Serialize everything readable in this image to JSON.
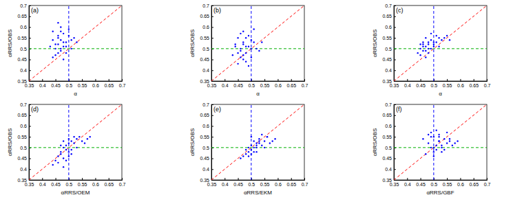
{
  "chart_data": [
    {
      "type": "scatter",
      "title": "(a)",
      "x_label": "α",
      "y_label": "αRRS/OBS",
      "xlim": [
        0.35,
        0.7
      ],
      "ylim": [
        0.35,
        0.7
      ],
      "xticks": [
        0.35,
        0.4,
        0.45,
        0.5,
        0.55,
        0.6,
        0.65,
        0.7
      ],
      "yticks": [
        0.35,
        0.4,
        0.45,
        0.5,
        0.55,
        0.6,
        0.65,
        0.7
      ],
      "series": [
        {
          "color": "#0000ff",
          "marker": "dot",
          "x": [
            0.45,
            0.46,
            0.47,
            0.48,
            0.44,
            0.49,
            0.5,
            0.46,
            0.47,
            0.45,
            0.48,
            0.51,
            0.43,
            0.46,
            0.47,
            0.49,
            0.52,
            0.44,
            0.48,
            0.46,
            0.5,
            0.47,
            0.45,
            0.53,
            0.48,
            0.46,
            0.49,
            0.47,
            0.51,
            0.44
          ],
          "values": [
            0.52,
            0.55,
            0.5,
            0.53,
            0.58,
            0.51,
            0.56,
            0.48,
            0.6,
            0.47,
            0.57,
            0.54,
            0.51,
            0.62,
            0.49,
            0.53,
            0.55,
            0.46,
            0.45,
            0.52,
            0.59,
            0.54,
            0.5,
            0.53,
            0.51,
            0.56,
            0.48,
            0.58,
            0.5,
            0.54
          ]
        }
      ],
      "lines": [
        {
          "x": [
            0.35,
            0.7
          ],
          "y": [
            0.35,
            0.7
          ],
          "color": "#ff0000",
          "line_style": "dashed"
        },
        {
          "x": [
            0.5,
            0.5
          ],
          "y": [
            0.35,
            0.7
          ],
          "color": "#0000ff",
          "line_style": "dashed"
        },
        {
          "x": [
            0.35,
            0.7
          ],
          "y": [
            0.5,
            0.5
          ],
          "color": "#00b000",
          "line_style": "dashed"
        }
      ]
    },
    {
      "type": "scatter",
      "title": "(b)",
      "x_label": "α",
      "y_label": "αRRS/OBS",
      "xlim": [
        0.35,
        0.7
      ],
      "ylim": [
        0.35,
        0.7
      ],
      "xticks": [
        0.35,
        0.4,
        0.45,
        0.5,
        0.55,
        0.6,
        0.65,
        0.7
      ],
      "yticks": [
        0.35,
        0.4,
        0.45,
        0.5,
        0.55,
        0.6,
        0.65,
        0.7
      ],
      "series": [
        {
          "color": "#0000ff",
          "marker": "dot",
          "x": [
            0.46,
            0.47,
            0.48,
            0.45,
            0.49,
            0.5,
            0.44,
            0.47,
            0.48,
            0.46,
            0.51,
            0.52,
            0.43,
            0.47,
            0.49,
            0.45,
            0.5,
            0.48,
            0.46,
            0.53,
            0.47,
            0.49,
            0.44,
            0.51,
            0.48,
            0.46,
            0.5,
            0.47,
            0.45,
            0.54
          ],
          "values": [
            0.5,
            0.53,
            0.48,
            0.55,
            0.51,
            0.46,
            0.52,
            0.58,
            0.44,
            0.49,
            0.53,
            0.5,
            0.47,
            0.45,
            0.56,
            0.43,
            0.54,
            0.51,
            0.57,
            0.49,
            0.47,
            0.42,
            0.51,
            0.59,
            0.55,
            0.46,
            0.5,
            0.52,
            0.48,
            0.53
          ]
        }
      ],
      "lines": [
        {
          "x": [
            0.35,
            0.7
          ],
          "y": [
            0.35,
            0.7
          ],
          "color": "#ff0000",
          "line_style": "dashed"
        },
        {
          "x": [
            0.5,
            0.5
          ],
          "y": [
            0.35,
            0.7
          ],
          "color": "#0000ff",
          "line_style": "dashed"
        },
        {
          "x": [
            0.35,
            0.7
          ],
          "y": [
            0.5,
            0.5
          ],
          "color": "#00b000",
          "line_style": "dashed"
        }
      ]
    },
    {
      "type": "scatter",
      "title": "(c)",
      "x_label": "α",
      "y_label": "αRRS/OBS",
      "xlim": [
        0.35,
        0.7
      ],
      "ylim": [
        0.35,
        0.7
      ],
      "xticks": [
        0.35,
        0.4,
        0.45,
        0.5,
        0.55,
        0.6,
        0.65,
        0.7
      ],
      "yticks": [
        0.35,
        0.4,
        0.45,
        0.5,
        0.55,
        0.6,
        0.65,
        0.7
      ],
      "series": [
        {
          "color": "#0000ff",
          "marker": "dot",
          "x": [
            0.45,
            0.46,
            0.47,
            0.48,
            0.46,
            0.49,
            0.5,
            0.47,
            0.48,
            0.45,
            0.51,
            0.52,
            0.44,
            0.47,
            0.49,
            0.53,
            0.55,
            0.46,
            0.48,
            0.5,
            0.47,
            0.54,
            0.49,
            0.46,
            0.51,
            0.48,
            0.56,
            0.45,
            0.5,
            0.52
          ],
          "values": [
            0.5,
            0.52,
            0.51,
            0.53,
            0.49,
            0.54,
            0.52,
            0.55,
            0.5,
            0.47,
            0.53,
            0.55,
            0.48,
            0.49,
            0.57,
            0.54,
            0.56,
            0.53,
            0.52,
            0.51,
            0.46,
            0.55,
            0.5,
            0.51,
            0.56,
            0.48,
            0.54,
            0.52,
            0.53,
            0.51
          ]
        }
      ],
      "lines": [
        {
          "x": [
            0.35,
            0.7
          ],
          "y": [
            0.35,
            0.7
          ],
          "color": "#ff0000",
          "line_style": "dashed"
        },
        {
          "x": [
            0.5,
            0.5
          ],
          "y": [
            0.35,
            0.7
          ],
          "color": "#0000ff",
          "line_style": "dashed"
        },
        {
          "x": [
            0.35,
            0.7
          ],
          "y": [
            0.5,
            0.5
          ],
          "color": "#00b000",
          "line_style": "dashed"
        }
      ]
    },
    {
      "type": "scatter",
      "title": "(d)",
      "x_label": "αRRS/OEM",
      "y_label": "αRRS/OBS",
      "xlim": [
        0.35,
        0.7
      ],
      "ylim": [
        0.35,
        0.7
      ],
      "xticks": [
        0.35,
        0.4,
        0.45,
        0.5,
        0.55,
        0.6,
        0.65,
        0.7
      ],
      "yticks": [
        0.35,
        0.4,
        0.45,
        0.5,
        0.55,
        0.6,
        0.65,
        0.7
      ],
      "series": [
        {
          "color": "#0000ff",
          "marker": "dot",
          "x": [
            0.47,
            0.48,
            0.49,
            0.5,
            0.46,
            0.51,
            0.52,
            0.48,
            0.5,
            0.45,
            0.53,
            0.55,
            0.47,
            0.49,
            0.51,
            0.44,
            0.54,
            0.5,
            0.48,
            0.57,
            0.52,
            0.46,
            0.5,
            0.49,
            0.53,
            0.58,
            0.47,
            0.51,
            0.56,
            0.48
          ],
          "values": [
            0.47,
            0.45,
            0.49,
            0.52,
            0.43,
            0.53,
            0.55,
            0.5,
            0.46,
            0.44,
            0.54,
            0.53,
            0.48,
            0.51,
            0.49,
            0.42,
            0.55,
            0.54,
            0.41,
            0.54,
            0.52,
            0.46,
            0.48,
            0.44,
            0.5,
            0.55,
            0.51,
            0.47,
            0.52,
            0.53
          ]
        }
      ],
      "lines": [
        {
          "x": [
            0.35,
            0.7
          ],
          "y": [
            0.35,
            0.7
          ],
          "color": "#ff0000",
          "line_style": "dashed"
        },
        {
          "x": [
            0.5,
            0.5
          ],
          "y": [
            0.35,
            0.7
          ],
          "color": "#0000ff",
          "line_style": "dashed"
        },
        {
          "x": [
            0.35,
            0.7
          ],
          "y": [
            0.5,
            0.5
          ],
          "color": "#00b000",
          "line_style": "dashed"
        }
      ]
    },
    {
      "type": "scatter",
      "title": "(e)",
      "x_label": "αRRS/EKM",
      "y_label": "αRRS/OBS",
      "xlim": [
        0.35,
        0.7
      ],
      "ylim": [
        0.35,
        0.7
      ],
      "xticks": [
        0.35,
        0.4,
        0.45,
        0.5,
        0.55,
        0.6,
        0.65,
        0.7
      ],
      "yticks": [
        0.35,
        0.4,
        0.45,
        0.5,
        0.55,
        0.6,
        0.65,
        0.7
      ],
      "series": [
        {
          "color": "#0000ff",
          "marker": "dot",
          "x": [
            0.48,
            0.5,
            0.51,
            0.52,
            0.49,
            0.53,
            0.54,
            0.5,
            0.52,
            0.47,
            0.55,
            0.56,
            0.49,
            0.51,
            0.53,
            0.46,
            0.57,
            0.52,
            0.5,
            0.58,
            0.54,
            0.48,
            0.52,
            0.51,
            0.55,
            0.59,
            0.5,
            0.53,
            0.56,
            0.49
          ],
          "values": [
            0.47,
            0.49,
            0.5,
            0.52,
            0.48,
            0.53,
            0.51,
            0.55,
            0.5,
            0.46,
            0.53,
            0.55,
            0.5,
            0.48,
            0.54,
            0.45,
            0.52,
            0.51,
            0.47,
            0.53,
            0.56,
            0.49,
            0.48,
            0.53,
            0.5,
            0.54,
            0.51,
            0.52,
            0.55,
            0.46
          ]
        }
      ],
      "lines": [
        {
          "x": [
            0.35,
            0.7
          ],
          "y": [
            0.35,
            0.7
          ],
          "color": "#ff0000",
          "line_style": "dashed"
        },
        {
          "x": [
            0.5,
            0.5
          ],
          "y": [
            0.35,
            0.7
          ],
          "color": "#0000ff",
          "line_style": "dashed"
        },
        {
          "x": [
            0.35,
            0.7
          ],
          "y": [
            0.5,
            0.5
          ],
          "color": "#00b000",
          "line_style": "dashed"
        }
      ]
    },
    {
      "type": "scatter",
      "title": "(f)",
      "x_label": "αRRS/GBF",
      "y_label": "αRRS/OBS",
      "xlim": [
        0.35,
        0.7
      ],
      "ylim": [
        0.35,
        0.7
      ],
      "xticks": [
        0.35,
        0.4,
        0.45,
        0.5,
        0.55,
        0.6,
        0.65,
        0.7
      ],
      "yticks": [
        0.35,
        0.4,
        0.45,
        0.5,
        0.55,
        0.6,
        0.65,
        0.7
      ],
      "series": [
        {
          "color": "#0000ff",
          "marker": "dot",
          "x": [
            0.48,
            0.5,
            0.51,
            0.52,
            0.49,
            0.53,
            0.54,
            0.5,
            0.52,
            0.47,
            0.55,
            0.56,
            0.49,
            0.51,
            0.53,
            0.46,
            0.57,
            0.52,
            0.5,
            0.58,
            0.54,
            0.48,
            0.52,
            0.51,
            0.55,
            0.59,
            0.5,
            0.53,
            0.56,
            0.49
          ],
          "values": [
            0.52,
            0.55,
            0.49,
            0.53,
            0.57,
            0.51,
            0.54,
            0.5,
            0.56,
            0.47,
            0.52,
            0.53,
            0.5,
            0.58,
            0.48,
            0.54,
            0.51,
            0.55,
            0.46,
            0.52,
            0.49,
            0.56,
            0.53,
            0.51,
            0.57,
            0.53,
            0.48,
            0.5,
            0.54,
            0.55
          ]
        }
      ],
      "lines": [
        {
          "x": [
            0.35,
            0.7
          ],
          "y": [
            0.35,
            0.7
          ],
          "color": "#ff0000",
          "line_style": "dashed"
        },
        {
          "x": [
            0.5,
            0.5
          ],
          "y": [
            0.35,
            0.7
          ],
          "color": "#0000ff",
          "line_style": "dashed"
        },
        {
          "x": [
            0.35,
            0.7
          ],
          "y": [
            0.5,
            0.5
          ],
          "color": "#00b000",
          "line_style": "dashed"
        }
      ]
    }
  ]
}
